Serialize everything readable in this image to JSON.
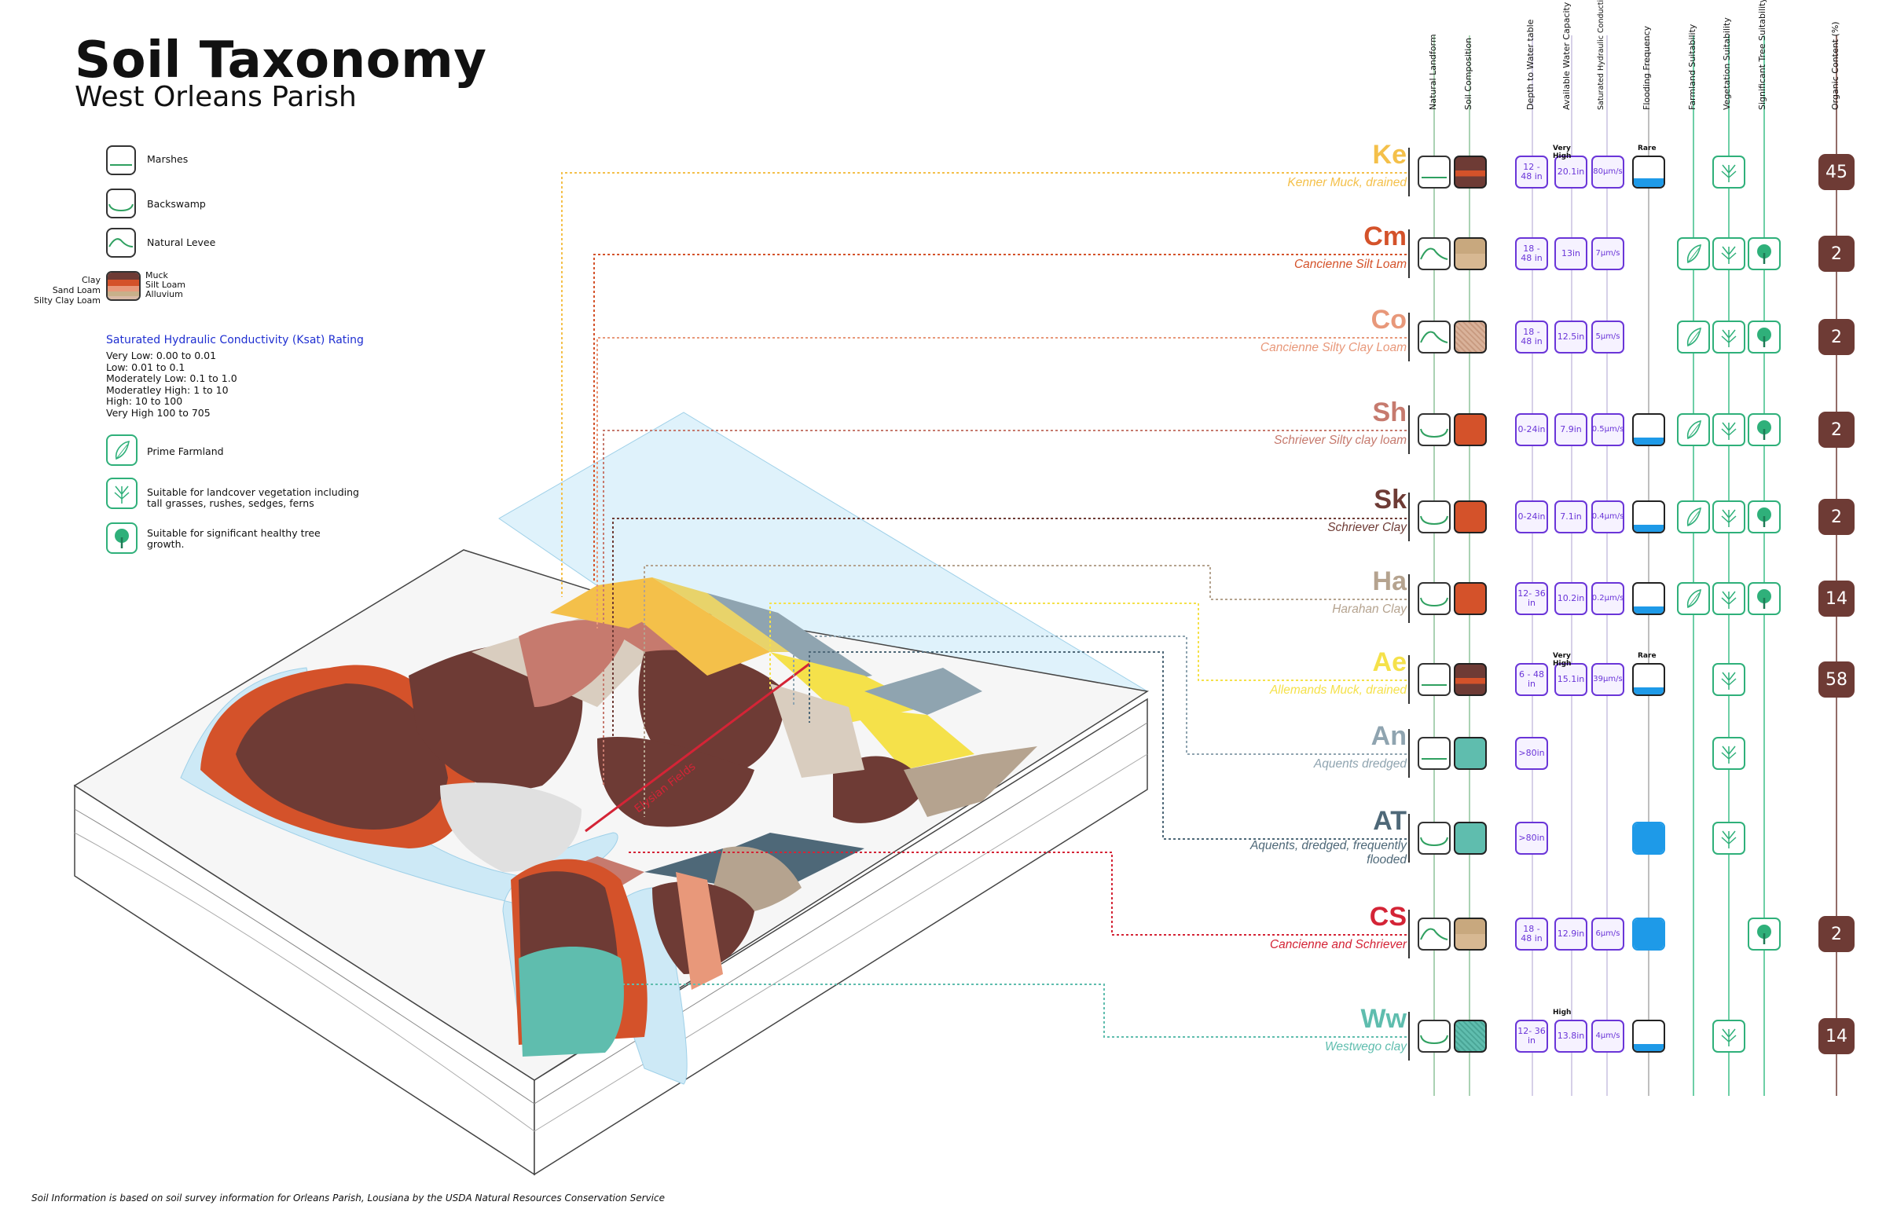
{
  "title": "Soil Taxonomy",
  "subtitle": "West Orleans Parish",
  "legend": {
    "landforms": [
      {
        "label": "Marshes",
        "icon": "marsh-landform-icon"
      },
      {
        "label": "Backswamp",
        "icon": "backswamp-landform-icon"
      },
      {
        "label": "Natural Levee",
        "icon": "natural-levee-landform-icon"
      }
    ],
    "mix_left": [
      "Clay",
      "Sand Loam",
      "Silty Clay Loam"
    ],
    "mix_right": [
      "Muck",
      "Silt Loam",
      "Alluvium"
    ],
    "ksat_title": "Saturated Hydraulic Conductivity (Ksat) Rating",
    "ksat_lines": [
      "Very Low: 0.00 to 0.01",
      "Low: 0.01 to 0.1",
      "Moderately Low: 0.1 to 1.0",
      "Moderatley High: 1 to 10",
      "High: 10 to 100",
      "Very High 100 to 705"
    ],
    "suitability": [
      {
        "label": "Prime Farmland",
        "icon": "farmland-icon"
      },
      {
        "label": "Suitable for landcover vegetation including tall grasses, rushes, sedges, ferns",
        "icon": "vegetation-icon"
      },
      {
        "label": "Suitable for significant healthy tree growth.",
        "icon": "tree-icon"
      }
    ]
  },
  "map": {
    "street_label": "Elysian Fields"
  },
  "columns": [
    "Natural Landform",
    "Soil Composition",
    "Depth to Water table",
    "Available Water Capacity",
    "Saturated Hydraulic Conductivity (Ksat)",
    "Flooding Frequency",
    "Farmland Suitability",
    "Vegetation Suitability",
    "Significant Tree Suitability",
    "Organic Content (%)"
  ],
  "soils": [
    {
      "code": "Ke",
      "name": "Kenner Muck, drained",
      "color": "#f4c04a",
      "landform": "marsh",
      "composition": "muck-clay",
      "depth": "12 - 48 in",
      "awc": "20.1in",
      "awc_note": "Very High",
      "ksat": "80μm/s",
      "flood": "Rare",
      "flood_level": 0.3,
      "farm": false,
      "veg": true,
      "tree": false,
      "organic": "45"
    },
    {
      "code": "Cm",
      "name": "Cancienne Silt Loam",
      "color": "#d4522a",
      "landform": "levee",
      "composition": "silt-loam",
      "depth": "18 - 48 in",
      "awc": "13in",
      "awc_note": "",
      "ksat": "7μm/s",
      "flood": "",
      "flood_level": 0,
      "farm": true,
      "veg": true,
      "tree": true,
      "organic": "2"
    },
    {
      "code": "Co",
      "name": "Cancienne Silty Clay Loam",
      "color": "#e8987a",
      "landform": "levee",
      "composition": "silty-clay-loam",
      "depth": "18 - 48 in",
      "awc": "12.5in",
      "awc_note": "",
      "ksat": "5μm/s",
      "flood": "",
      "flood_level": 0,
      "farm": true,
      "veg": true,
      "tree": true,
      "organic": "2"
    },
    {
      "code": "Sh",
      "name": "Schriever Silty clay loam",
      "color": "#c67a6e",
      "landform": "backswamp",
      "composition": "clay-top",
      "depth": "0-24in",
      "awc": "7.9in",
      "awc_note": "",
      "ksat": "0.5μm/s",
      "flood": "",
      "flood_level": 0.25,
      "farm": true,
      "veg": true,
      "tree": true,
      "organic": "2"
    },
    {
      "code": "Sk",
      "name": "Schriever Clay",
      "color": "#6e3b35",
      "landform": "backswamp",
      "composition": "clay",
      "depth": "0-24in",
      "awc": "7.1in",
      "awc_note": "",
      "ksat": "0.4μm/s",
      "flood": "",
      "flood_level": 0.25,
      "farm": true,
      "veg": true,
      "tree": true,
      "organic": "2"
    },
    {
      "code": "Ha",
      "name": "Harahan Clay",
      "color": "#b5a38f",
      "landform": "backswamp",
      "composition": "clay",
      "depth": "12- 36 in",
      "awc": "10.2in",
      "awc_note": "",
      "ksat": "0.2μm/s",
      "flood": "",
      "flood_level": 0.25,
      "farm": true,
      "veg": true,
      "tree": true,
      "organic": "14"
    },
    {
      "code": "Ae",
      "name": "Allemands Muck, drained",
      "color": "#f5e14a",
      "landform": "marsh",
      "composition": "muck-clay",
      "depth": "6 - 48 in",
      "awc": "15.1in",
      "awc_note": "Very High",
      "ksat": "39μm/s",
      "flood": "Rare",
      "flood_level": 0.25,
      "farm": false,
      "veg": true,
      "tree": false,
      "organic": "58"
    },
    {
      "code": "An",
      "name": "Aquents dredged",
      "color": "#8fa4b0",
      "landform": "marsh",
      "composition": "alluvium",
      "depth": ">80in",
      "awc": "",
      "awc_note": "",
      "ksat": "",
      "flood": "",
      "flood_level": -1,
      "farm": false,
      "veg": true,
      "tree": false,
      "organic": ""
    },
    {
      "code": "AT",
      "name": "Aquents, dredged, frequently flooded",
      "color": "#4e6878",
      "landform": "backswamp",
      "composition": "alluvium",
      "depth": ">80in",
      "awc": "",
      "awc_note": "",
      "ksat": "",
      "flood": "",
      "flood_level": 1,
      "farm": false,
      "veg": true,
      "tree": false,
      "organic": ""
    },
    {
      "code": "CS",
      "name": "Cancienne and Schriever",
      "color": "#d42436",
      "landform": "levee",
      "composition": "silt-loam",
      "depth": "18 - 48 in",
      "awc": "12.9in",
      "awc_note": "",
      "ksat": "6μm/s",
      "flood": "",
      "flood_level": 1,
      "farm": false,
      "veg": false,
      "tree": true,
      "organic": "2"
    },
    {
      "code": "Ww",
      "name": "Westwego clay",
      "color": "#5fbdae",
      "landform": "backswamp",
      "composition": "alluvium-texture",
      "depth": "12- 36 in",
      "awc": "13.8in",
      "awc_note": "High",
      "ksat": "4μm/s",
      "flood": "",
      "flood_level": 0.25,
      "farm": false,
      "veg": true,
      "tree": false,
      "organic": "14"
    }
  ],
  "footer": "Soil Information is based on soil survey information for Orleans Parish, Lousiana by the USDA Natural Resources Conservation Service"
}
